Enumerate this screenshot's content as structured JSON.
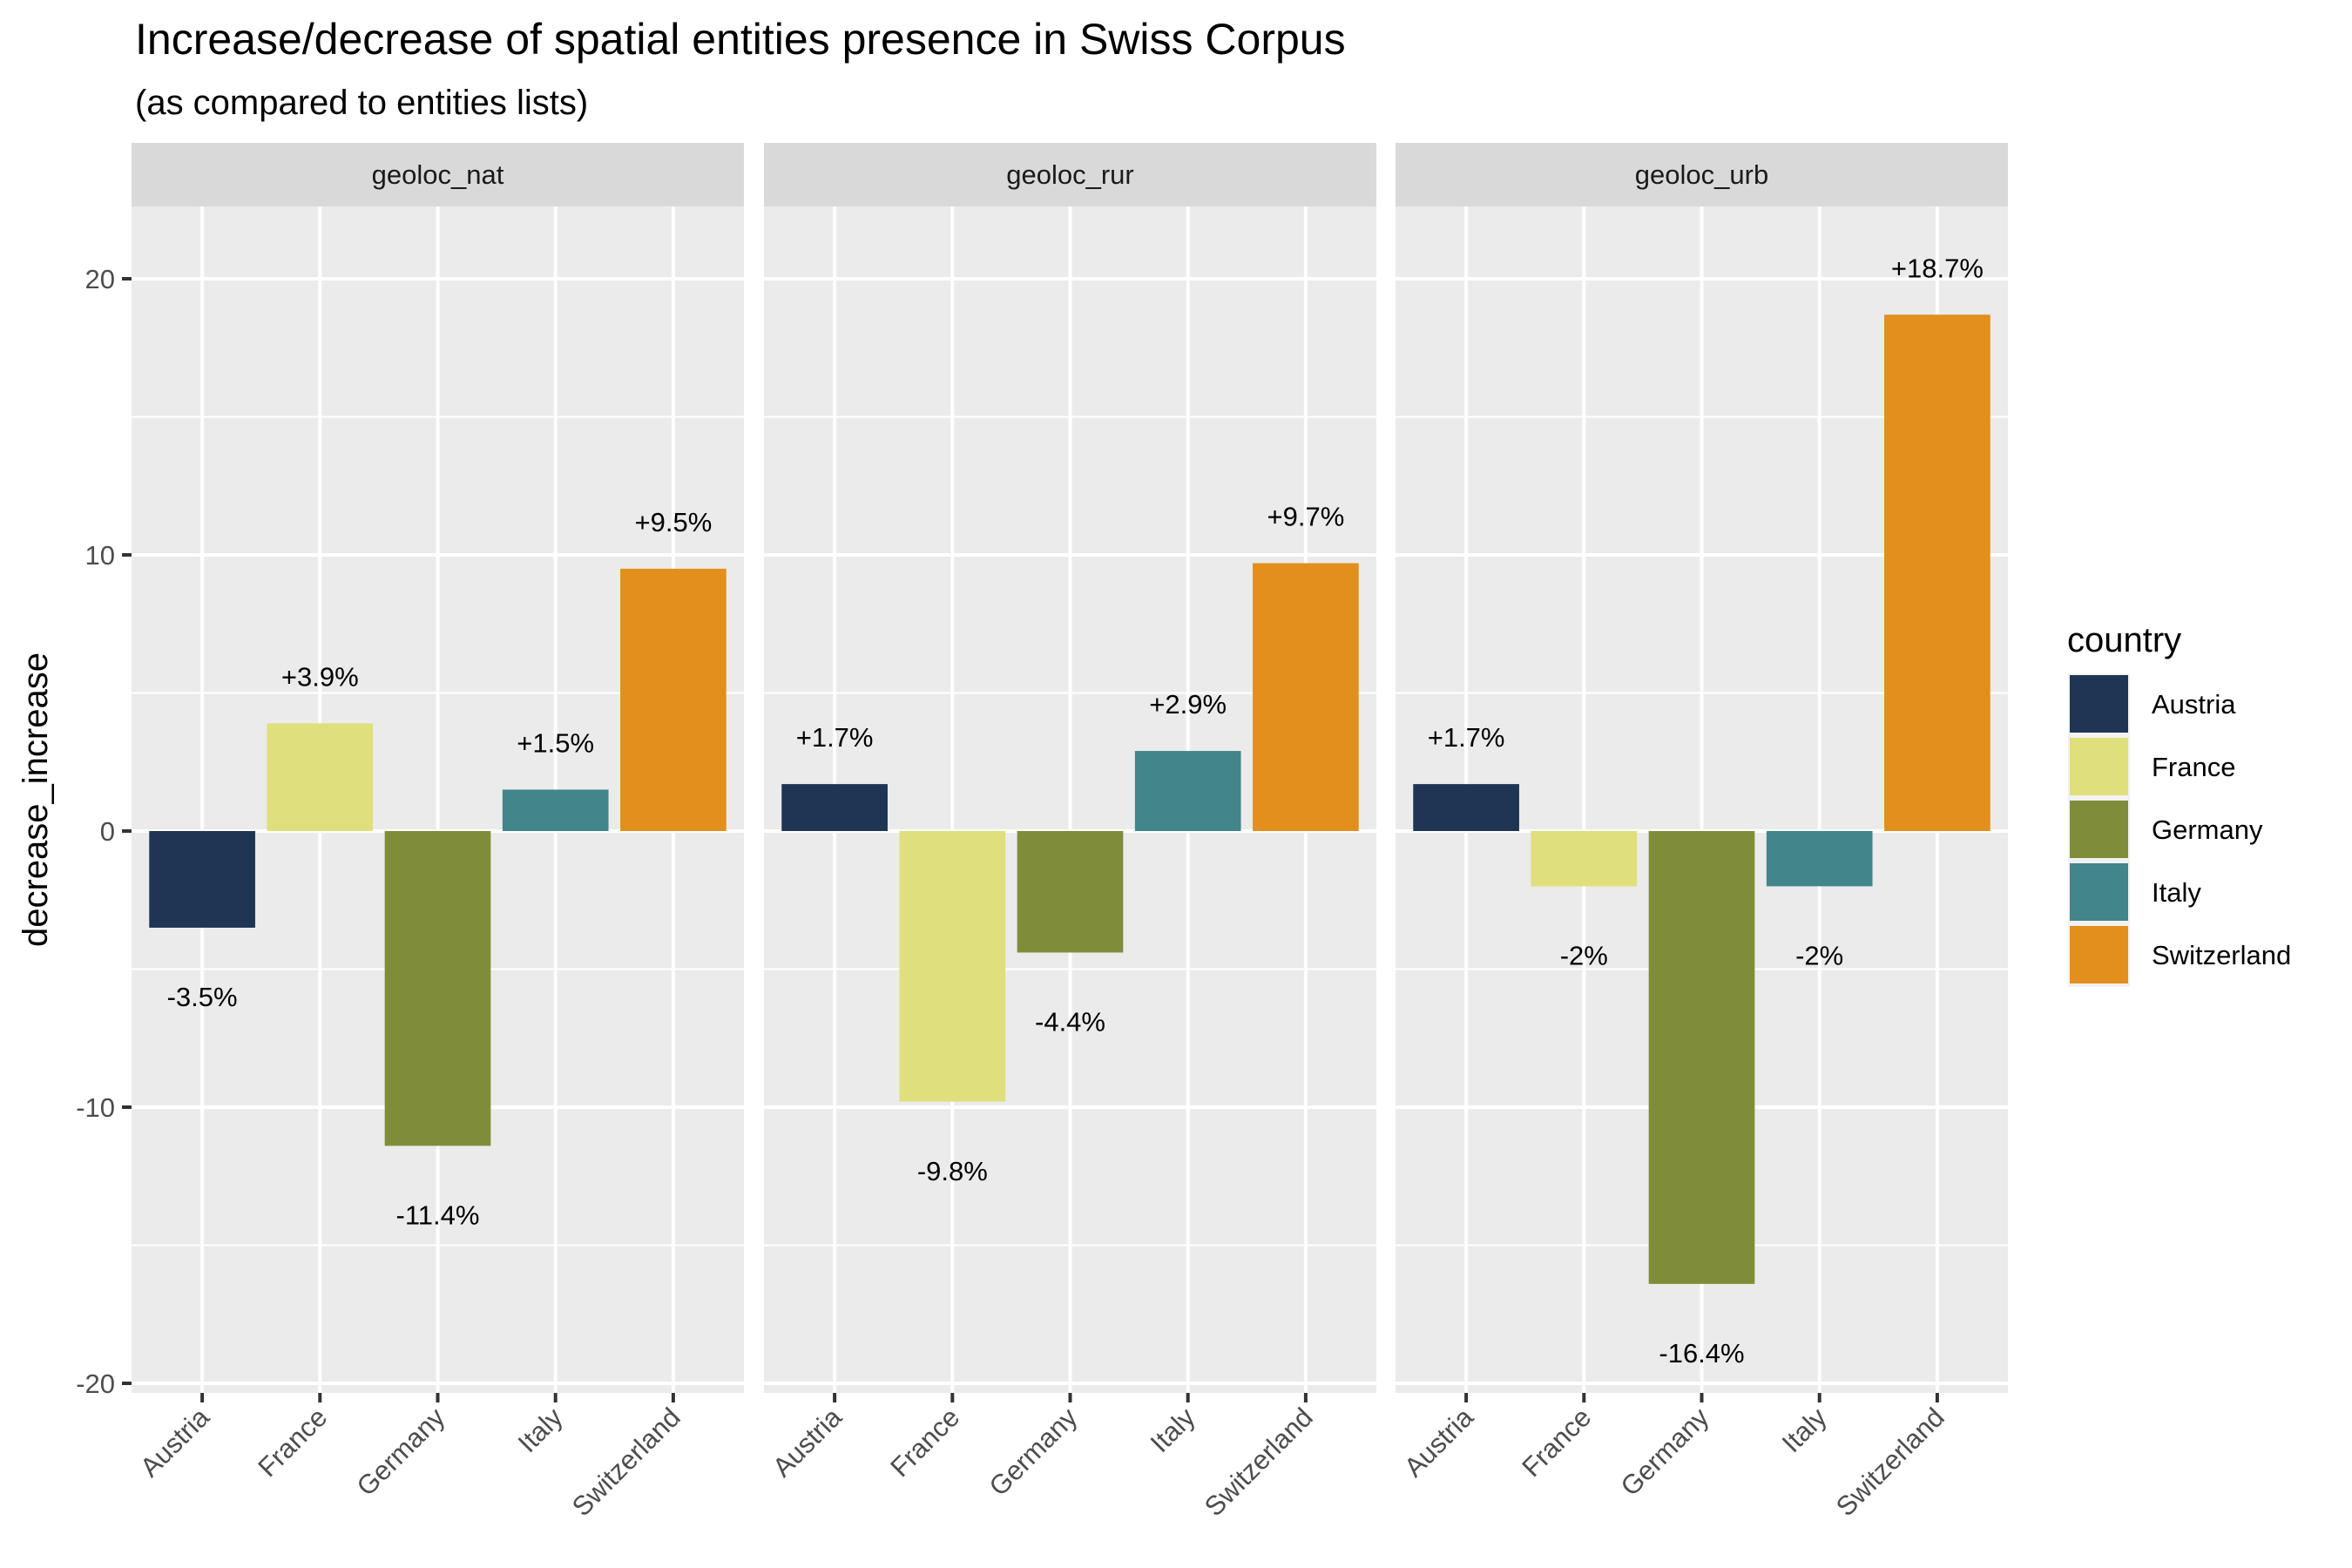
{
  "chart_data": {
    "type": "bar",
    "title": "Increase/decrease of spatial entities presence in Swiss Corpus",
    "subtitle": "(as compared to entities lists)",
    "xlabel": "",
    "ylabel": "decrease_increase",
    "ylim": [
      -20,
      22.5
    ],
    "yticks": [
      -20,
      -10,
      0,
      10,
      20
    ],
    "ytick_labels": [
      "-20",
      "-10",
      "0",
      "10",
      "20"
    ],
    "grid": true,
    "categories": [
      "Austria",
      "France",
      "Germany",
      "Italy",
      "Switzerland"
    ],
    "facets": [
      {
        "name": "geoloc_nat",
        "values": [
          -3.5,
          3.9,
          -11.4,
          1.5,
          9.5
        ],
        "labels": [
          "-3.5%",
          "+3.9%",
          "-11.4%",
          "+1.5%",
          "+9.5%"
        ]
      },
      {
        "name": "geoloc_rur",
        "values": [
          1.7,
          -9.8,
          -4.4,
          2.9,
          9.7
        ],
        "labels": [
          "+1.7%",
          "-9.8%",
          "-4.4%",
          "+2.9%",
          "+9.7%"
        ]
      },
      {
        "name": "geoloc_urb",
        "values": [
          1.7,
          -2,
          -16.4,
          -2,
          18.7
        ],
        "labels": [
          "+1.7%",
          "-2%",
          "-16.4%",
          "-2%",
          "+18.7%"
        ]
      }
    ],
    "legend": {
      "title": "country",
      "position": "right",
      "entries": [
        {
          "label": "Austria",
          "color": "#1E3554"
        },
        {
          "label": "France",
          "color": "#DFDF7C"
        },
        {
          "label": "Germany",
          "color": "#7F8D3A"
        },
        {
          "label": "Italy",
          "color": "#42858A"
        },
        {
          "label": "Switzerland",
          "color": "#E28F1D"
        }
      ]
    }
  },
  "colors": {
    "panel_background": "#EBEBEB",
    "strip_background": "#D9D9D9",
    "gridline": "#FFFFFF",
    "tick": "#333333"
  }
}
